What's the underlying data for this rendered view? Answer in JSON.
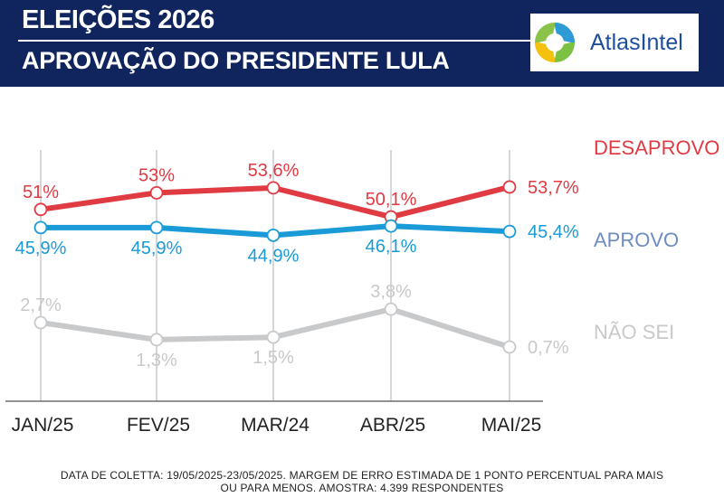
{
  "header": {
    "title_line1": "ELEIÇÕES 2026",
    "title_line2": "APROVAÇÃO DO PRESIDENTE LULA",
    "logo_text": "AtlasIntel"
  },
  "footnote": {
    "line1": "DATA DE COLETTA: 19/05/2025-23/05/2025. MARGEM DE ERRO ESTIMADA DE 1 PONTO PERCENTUAL PARA MAIS",
    "line2": "OU PARA MENOS. AMOSTRA: 4.399 RESPONDENTES"
  },
  "chart_data": {
    "type": "line",
    "title": "APROVAÇÃO DO PRESIDENTE LULA",
    "categories": [
      "JAN/25",
      "FEV/25",
      "MAR/24",
      "ABR/25",
      "MAI/25"
    ],
    "grid": "vertical",
    "series": [
      {
        "name": "DESAPROVO",
        "values": [
          51,
          53,
          53.6,
          50.1,
          53.7
        ],
        "labels": [
          "51%",
          "53%",
          "53,6%",
          "50,1%",
          "53,7%"
        ],
        "label_pos": [
          "above",
          "above",
          "above",
          "above",
          "right"
        ],
        "color": "#e03a43"
      },
      {
        "name": "APROVO",
        "values": [
          45.9,
          45.9,
          44.9,
          46.1,
          45.4
        ],
        "labels": [
          "45,9%",
          "45,9%",
          "44,9%",
          "46,1%",
          "45,4%"
        ],
        "label_pos": [
          "below",
          "below",
          "below",
          "below",
          "right"
        ],
        "color": "#1a9bd7"
      },
      {
        "name": "NÃO SEI",
        "values": [
          2.7,
          1.3,
          1.5,
          3.8,
          0.7
        ],
        "labels": [
          "2,7%",
          "1,3%",
          "1,5%",
          "3,8%",
          "0,7%"
        ],
        "label_pos": [
          "above",
          "below",
          "below",
          "above",
          "right"
        ],
        "color": "#c8c9cb"
      }
    ],
    "series_name_colors": [
      "#e03a43",
      "#6f8cc2",
      "#c8c9cb"
    ]
  }
}
